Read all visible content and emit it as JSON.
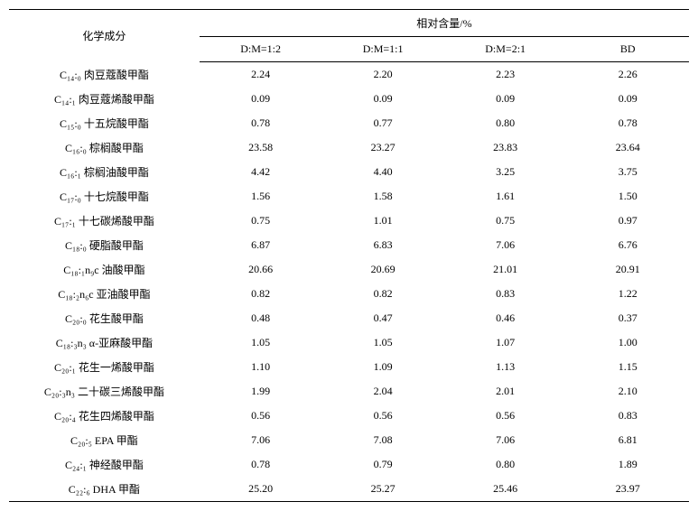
{
  "table": {
    "header": {
      "component": "化学成分",
      "group": "相对含量/%",
      "columns": [
        "D:M=1:2",
        "D:M=1:1",
        "D:M=2:1",
        "BD"
      ]
    },
    "rows": [
      {
        "name": "C₁₄:₀ 肉豆蔻酸甲酯",
        "v1": "2.24",
        "v2": "2.20",
        "v3": "2.23",
        "v4": "2.26"
      },
      {
        "name": "C₁₄:₁ 肉豆蔻烯酸甲酯",
        "v1": "0.09",
        "v2": "0.09",
        "v3": "0.09",
        "v4": "0.09"
      },
      {
        "name": "C₁₅:₀ 十五烷酸甲酯",
        "v1": "0.78",
        "v2": "0.77",
        "v3": "0.80",
        "v4": "0.78"
      },
      {
        "name": "C₁₆:₀ 棕榈酸甲酯",
        "v1": "23.58",
        "v2": "23.27",
        "v3": "23.83",
        "v4": "23.64"
      },
      {
        "name": "C₁₆:₁ 棕榈油酸甲酯",
        "v1": "4.42",
        "v2": "4.40",
        "v3": "3.25",
        "v4": "3.75"
      },
      {
        "name": "C₁₇:₀ 十七烷酸甲酯",
        "v1": "1.56",
        "v2": "1.58",
        "v3": "1.61",
        "v4": "1.50"
      },
      {
        "name": "C₁₇:₁ 十七碳烯酸甲酯",
        "v1": "0.75",
        "v2": "1.01",
        "v3": "0.75",
        "v4": "0.97"
      },
      {
        "name": "C₁₈:₀ 硬脂酸甲酯",
        "v1": "6.87",
        "v2": "6.83",
        "v3": "7.06",
        "v4": "6.76"
      },
      {
        "name": "C₁₈:₁n₉c 油酸甲酯",
        "v1": "20.66",
        "v2": "20.69",
        "v3": "21.01",
        "v4": "20.91"
      },
      {
        "name": "C₁₈:₂n₆c 亚油酸甲酯",
        "v1": "0.82",
        "v2": "0.82",
        "v3": "0.83",
        "v4": "1.22"
      },
      {
        "name": "C₂₀:₀ 花生酸甲酯",
        "v1": "0.48",
        "v2": "0.47",
        "v3": "0.46",
        "v4": "0.37"
      },
      {
        "name": "C₁₈:₃n₃ α-亚麻酸甲酯",
        "v1": "1.05",
        "v2": "1.05",
        "v3": "1.07",
        "v4": "1.00"
      },
      {
        "name": "C₂₀:₁ 花生一烯酸甲酯",
        "v1": "1.10",
        "v2": "1.09",
        "v3": "1.13",
        "v4": "1.15"
      },
      {
        "name": "C₂₀:₃n₃ 二十碳三烯酸甲酯",
        "v1": "1.99",
        "v2": "2.04",
        "v3": "2.01",
        "v4": "2.10"
      },
      {
        "name": "C₂₀:₄ 花生四烯酸甲酯",
        "v1": "0.56",
        "v2": "0.56",
        "v3": "0.56",
        "v4": "0.83"
      },
      {
        "name": "C₂₀:₅ EPA 甲酯",
        "v1": "7.06",
        "v2": "7.08",
        "v3": "7.06",
        "v4": "6.81"
      },
      {
        "name": "C₂₄:₁ 神经酸甲酯",
        "v1": "0.78",
        "v2": "0.79",
        "v3": "0.80",
        "v4": "1.89"
      },
      {
        "name": "C₂₂:₆ DHA 甲酯",
        "v1": "25.20",
        "v2": "25.27",
        "v3": "25.46",
        "v4": "23.97"
      }
    ]
  },
  "style": {
    "font_family": "SimSun",
    "font_size_body": 12,
    "font_size_sub": 9,
    "border_color": "#000000",
    "background": "#ffffff",
    "text_color": "#000000",
    "border_top_width": 1.5,
    "border_mid_width": 1,
    "border_bottom_width": 1.5
  }
}
